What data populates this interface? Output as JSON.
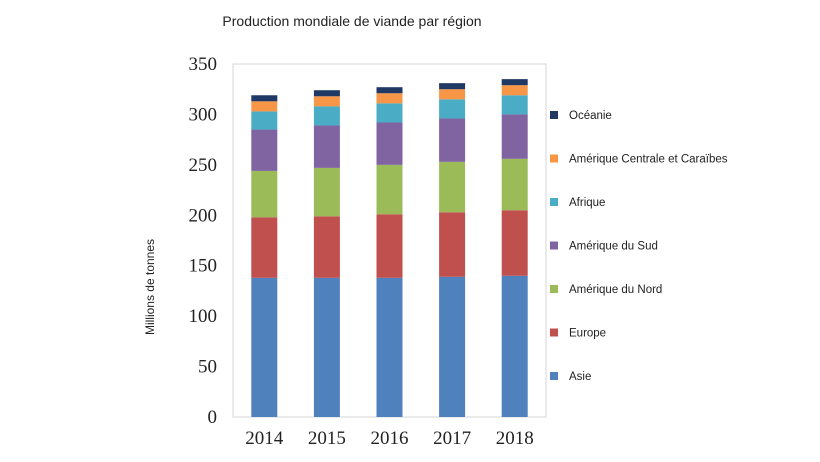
{
  "chart_data": {
    "type": "bar",
    "stacked": true,
    "title": "Production mondiale de viande par région",
    "xlabel": "",
    "ylabel": "Millions de tonnes",
    "ylim": [
      0,
      350
    ],
    "yticks": [
      "0",
      "50",
      "100",
      "150",
      "200",
      "250",
      "300",
      "350"
    ],
    "categories": [
      "2014",
      "2015",
      "2016",
      "2017",
      "2018"
    ],
    "grid": false,
    "legend_position": "right",
    "series": [
      {
        "name": "Asie",
        "color": "#4f81bd",
        "values": [
          138,
          138,
          138,
          139,
          140
        ]
      },
      {
        "name": "Europe",
        "color": "#c0504d",
        "values": [
          60,
          61,
          63,
          64,
          65
        ]
      },
      {
        "name": "Amérique du Nord",
        "color": "#9bbb59",
        "values": [
          46,
          48,
          49,
          50,
          51
        ]
      },
      {
        "name": "Amérique du Sud",
        "color": "#8064a2",
        "values": [
          41,
          42,
          42,
          43,
          44
        ]
      },
      {
        "name": "Afrique",
        "color": "#4bacc6",
        "values": [
          18,
          19,
          19,
          19,
          19
        ]
      },
      {
        "name": "Amérique Centrale et Caraïbes",
        "color": "#f79646",
        "values": [
          10,
          10,
          10,
          10,
          10
        ]
      },
      {
        "name": "Océanie",
        "color": "#1f3864",
        "values": [
          6,
          6,
          6,
          6,
          6
        ]
      }
    ]
  }
}
